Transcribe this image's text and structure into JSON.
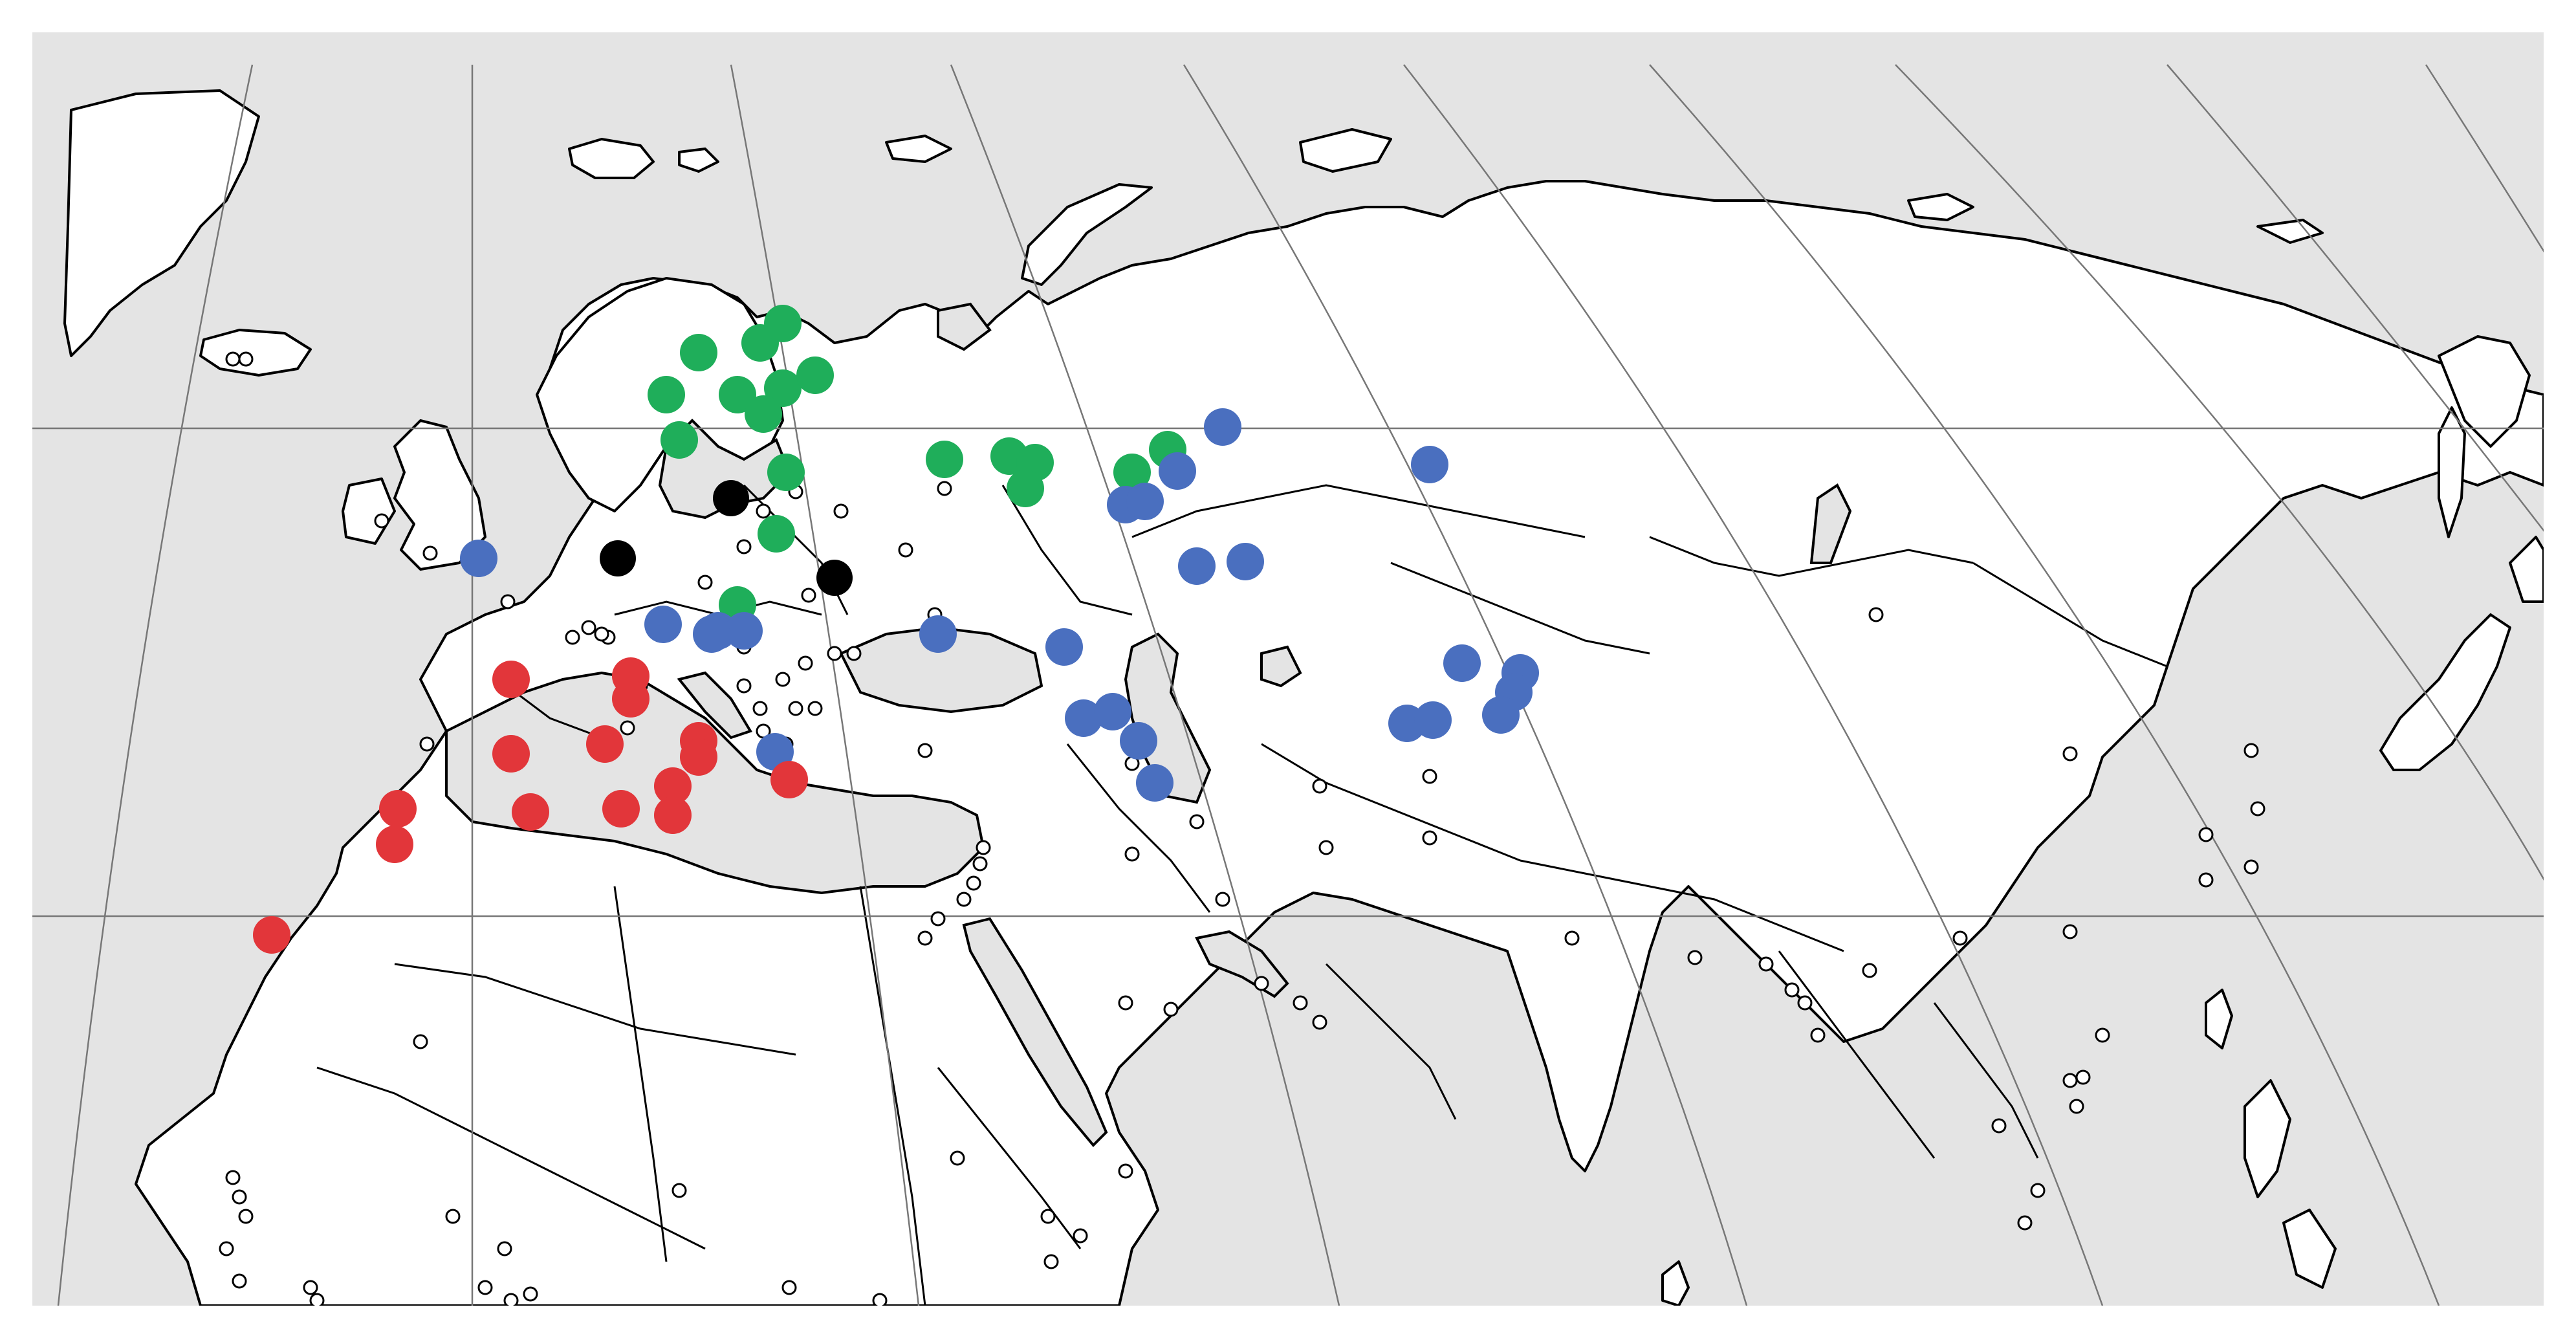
{
  "map": {
    "projection": "conic",
    "colors": {
      "ocean": "#e4e4e4",
      "land": "#ffffff",
      "border": "#000000",
      "graticule": "#777777",
      "site_marker_fill": "#ffffff",
      "site_marker_stroke": "#000000"
    },
    "legend": null,
    "groups": [
      {
        "key": "green",
        "color": "#1fae5a"
      },
      {
        "key": "blue",
        "color": "#4a6fbf"
      },
      {
        "key": "red",
        "color": "#e2363a"
      },
      {
        "key": "black",
        "color": "#000000"
      }
    ]
  }
}
